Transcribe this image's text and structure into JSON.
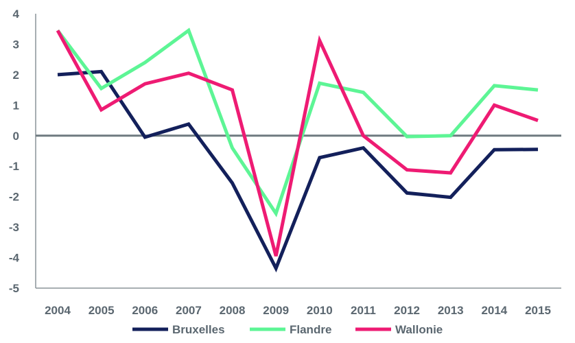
{
  "chart_data": {
    "type": "line",
    "title": "",
    "xlabel": "",
    "ylabel": "",
    "x": [
      "2004",
      "2005",
      "2006",
      "2007",
      "2008",
      "2009",
      "2010",
      "2011",
      "2012",
      "2013",
      "2014",
      "2015"
    ],
    "ylim": [
      -5,
      4
    ],
    "yticks": [
      "4",
      "3",
      "2",
      "1",
      "0",
      "-1",
      "-2",
      "-3",
      "-4",
      "-5"
    ],
    "grid": false,
    "legend_position": "bottom",
    "series": [
      {
        "name": "Bruxelles",
        "color": "#13205b",
        "values": [
          2.0,
          2.1,
          -0.05,
          0.38,
          -1.55,
          -4.35,
          -0.72,
          -0.4,
          -1.88,
          -2.02,
          -0.46,
          -0.45
        ]
      },
      {
        "name": "Flandre",
        "color": "#5df595",
        "values": [
          3.45,
          1.55,
          2.4,
          3.45,
          -0.4,
          -2.55,
          1.72,
          1.42,
          -0.03,
          0.0,
          1.64,
          1.5
        ]
      },
      {
        "name": "Wallonie",
        "color": "#ee1b73",
        "values": [
          3.45,
          0.85,
          1.7,
          2.05,
          1.5,
          -3.95,
          3.12,
          0.0,
          -1.12,
          -1.22,
          1.0,
          0.5
        ]
      }
    ]
  }
}
